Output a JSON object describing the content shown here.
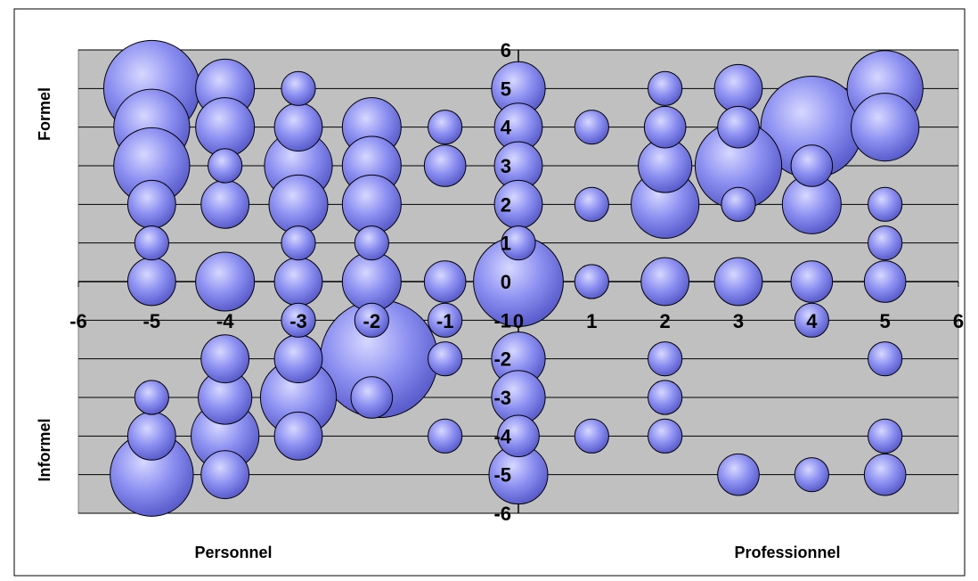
{
  "chart_data": {
    "type": "bubble",
    "title": "",
    "xlim": [
      -6,
      6
    ],
    "ylim": [
      -6,
      6
    ],
    "x_ticks": [
      -6,
      -5,
      -4,
      -3,
      -2,
      -1,
      0,
      1,
      2,
      3,
      4,
      5,
      6
    ],
    "y_ticks": [
      -6,
      -5,
      -4,
      -3,
      -2,
      -1,
      0,
      1,
      2,
      3,
      4,
      5,
      6
    ],
    "grid": "horizontal",
    "colors": {
      "plot_bg": "#c0c0c0",
      "bubble": "#8c8ff0",
      "bubble_light": "#d6d8ff",
      "bubble_dark": "#5a5dcc"
    },
    "labels": {
      "y_top": "Formel",
      "y_bottom": "Informel",
      "x_left": "Personnel",
      "x_right": "Professionnel"
    },
    "points": [
      {
        "x": -5,
        "y": 5,
        "size": 8
      },
      {
        "x": -5,
        "y": 4,
        "size": 5
      },
      {
        "x": -5,
        "y": 3,
        "size": 5
      },
      {
        "x": -5,
        "y": 2,
        "size": 2
      },
      {
        "x": -5,
        "y": 1,
        "size": 1
      },
      {
        "x": -5,
        "y": 0,
        "size": 2
      },
      {
        "x": -5,
        "y": -3,
        "size": 1
      },
      {
        "x": -5,
        "y": -4,
        "size": 2
      },
      {
        "x": -5,
        "y": -5,
        "size": 6
      },
      {
        "x": -4,
        "y": 5,
        "size": 3
      },
      {
        "x": -4,
        "y": 4,
        "size": 3
      },
      {
        "x": -4,
        "y": 3,
        "size": 1
      },
      {
        "x": -4,
        "y": 2,
        "size": 2
      },
      {
        "x": -4,
        "y": 0,
        "size": 3
      },
      {
        "x": -4,
        "y": -2,
        "size": 2
      },
      {
        "x": -4,
        "y": -3,
        "size": 2.5
      },
      {
        "x": -4,
        "y": -4,
        "size": 4
      },
      {
        "x": -4,
        "y": -5,
        "size": 2
      },
      {
        "x": -3,
        "y": 5,
        "size": 1
      },
      {
        "x": -3,
        "y": 4,
        "size": 2
      },
      {
        "x": -3,
        "y": 3,
        "size": 4
      },
      {
        "x": -3,
        "y": 2,
        "size": 3
      },
      {
        "x": -3,
        "y": 1,
        "size": 1
      },
      {
        "x": -3,
        "y": 0,
        "size": 2
      },
      {
        "x": -3,
        "y": -1,
        "size": 1
      },
      {
        "x": -3,
        "y": -2,
        "size": 2
      },
      {
        "x": -3,
        "y": -3,
        "size": 5
      },
      {
        "x": -3,
        "y": -4,
        "size": 2
      },
      {
        "x": -2,
        "y": 4,
        "size": 3
      },
      {
        "x": -2,
        "y": 3,
        "size": 3
      },
      {
        "x": -2,
        "y": 2,
        "size": 3
      },
      {
        "x": -2,
        "y": 1,
        "size": 1
      },
      {
        "x": -2,
        "y": 0,
        "size": 3
      },
      {
        "x": -2,
        "y": -1,
        "size": 1
      },
      {
        "x": -2,
        "y": -3,
        "size": 1.5
      },
      {
        "x": -1.9,
        "y": -2,
        "size": 12
      },
      {
        "x": -1,
        "y": 4,
        "size": 1
      },
      {
        "x": -1,
        "y": 3,
        "size": 1.5
      },
      {
        "x": -1,
        "y": 0,
        "size": 1.5
      },
      {
        "x": -1,
        "y": -1,
        "size": 1
      },
      {
        "x": -1,
        "y": -2,
        "size": 1
      },
      {
        "x": -1,
        "y": -4,
        "size": 1
      },
      {
        "x": 0,
        "y": 5,
        "size": 2.5
      },
      {
        "x": 0,
        "y": 4,
        "size": 2
      },
      {
        "x": 0,
        "y": 3,
        "size": 2
      },
      {
        "x": 0,
        "y": 2,
        "size": 2
      },
      {
        "x": 0,
        "y": 1,
        "size": 1
      },
      {
        "x": 0,
        "y": 0,
        "size": 7
      },
      {
        "x": 0,
        "y": -2,
        "size": 2.5
      },
      {
        "x": 0,
        "y": -3,
        "size": 2.5
      },
      {
        "x": 0,
        "y": -4,
        "size": 1.5
      },
      {
        "x": 0,
        "y": -5,
        "size": 3
      },
      {
        "x": 1,
        "y": 4,
        "size": 1
      },
      {
        "x": 1,
        "y": 2,
        "size": 1
      },
      {
        "x": 1,
        "y": 0,
        "size": 1
      },
      {
        "x": 1,
        "y": -4,
        "size": 1
      },
      {
        "x": 2,
        "y": 5,
        "size": 1
      },
      {
        "x": 2,
        "y": 4,
        "size": 1.5
      },
      {
        "x": 2,
        "y": 3,
        "size": 2.5
      },
      {
        "x": 2,
        "y": 2,
        "size": 4
      },
      {
        "x": 2,
        "y": 0,
        "size": 2
      },
      {
        "x": 2,
        "y": -2,
        "size": 1
      },
      {
        "x": 2,
        "y": -3,
        "size": 1
      },
      {
        "x": 2,
        "y": -4,
        "size": 1
      },
      {
        "x": 3,
        "y": 5,
        "size": 2
      },
      {
        "x": 3,
        "y": 4,
        "size": 1.5
      },
      {
        "x": 3,
        "y": 3,
        "size": 6.5
      },
      {
        "x": 3,
        "y": 2,
        "size": 1
      },
      {
        "x": 3,
        "y": 0,
        "size": 2
      },
      {
        "x": 3,
        "y": -5,
        "size": 1.5
      },
      {
        "x": 4,
        "y": 3,
        "size": 1.5
      },
      {
        "x": 4,
        "y": 2,
        "size": 3
      },
      {
        "x": 4,
        "y": 0,
        "size": 1.5
      },
      {
        "x": 4,
        "y": -1,
        "size": 1
      },
      {
        "x": 4,
        "y": -5,
        "size": 1
      },
      {
        "x": 4,
        "y": 4,
        "size": 9
      },
      {
        "x": 5,
        "y": 5,
        "size": 5
      },
      {
        "x": 5,
        "y": 4,
        "size": 4
      },
      {
        "x": 5,
        "y": 2,
        "size": 1
      },
      {
        "x": 5,
        "y": 1,
        "size": 1
      },
      {
        "x": 5,
        "y": 0,
        "size": 1.5
      },
      {
        "x": 5,
        "y": -2,
        "size": 1
      },
      {
        "x": 5,
        "y": -4,
        "size": 1
      },
      {
        "x": 5,
        "y": -5,
        "size": 1.5
      }
    ]
  }
}
